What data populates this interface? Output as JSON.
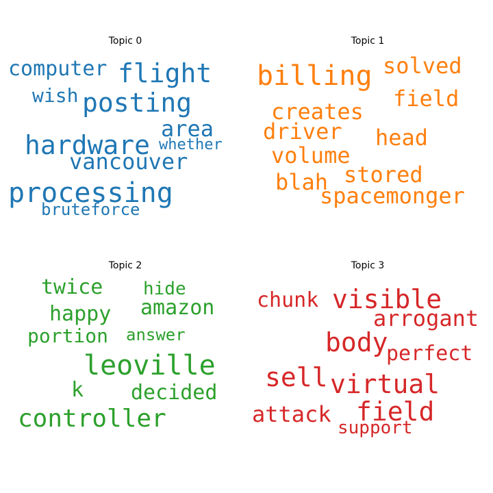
{
  "topics": [
    {
      "title": "Topic 0",
      "color": "#1f77b4",
      "words": [
        "computer",
        "flight",
        "wish",
        "posting",
        "area",
        "hardware",
        "whether",
        "vancouver",
        "processing",
        "bruteforce"
      ]
    },
    {
      "title": "Topic 1",
      "color": "#ff7f0e",
      "words": [
        "billing",
        "solved",
        "field",
        "creates",
        "driver",
        "head",
        "volume",
        "stored",
        "blah",
        "spacemonger"
      ]
    },
    {
      "title": "Topic 2",
      "color": "#2ca02c",
      "words": [
        "twice",
        "hide",
        "amazon",
        "happy",
        "portion",
        "answer",
        "leoville",
        "k",
        "decided",
        "controller"
      ]
    },
    {
      "title": "Topic 3",
      "color": "#d62728",
      "words": [
        "chunk",
        "visible",
        "arrogant",
        "body",
        "perfect",
        "sell",
        "virtual",
        "attack",
        "field",
        "support"
      ]
    }
  ]
}
